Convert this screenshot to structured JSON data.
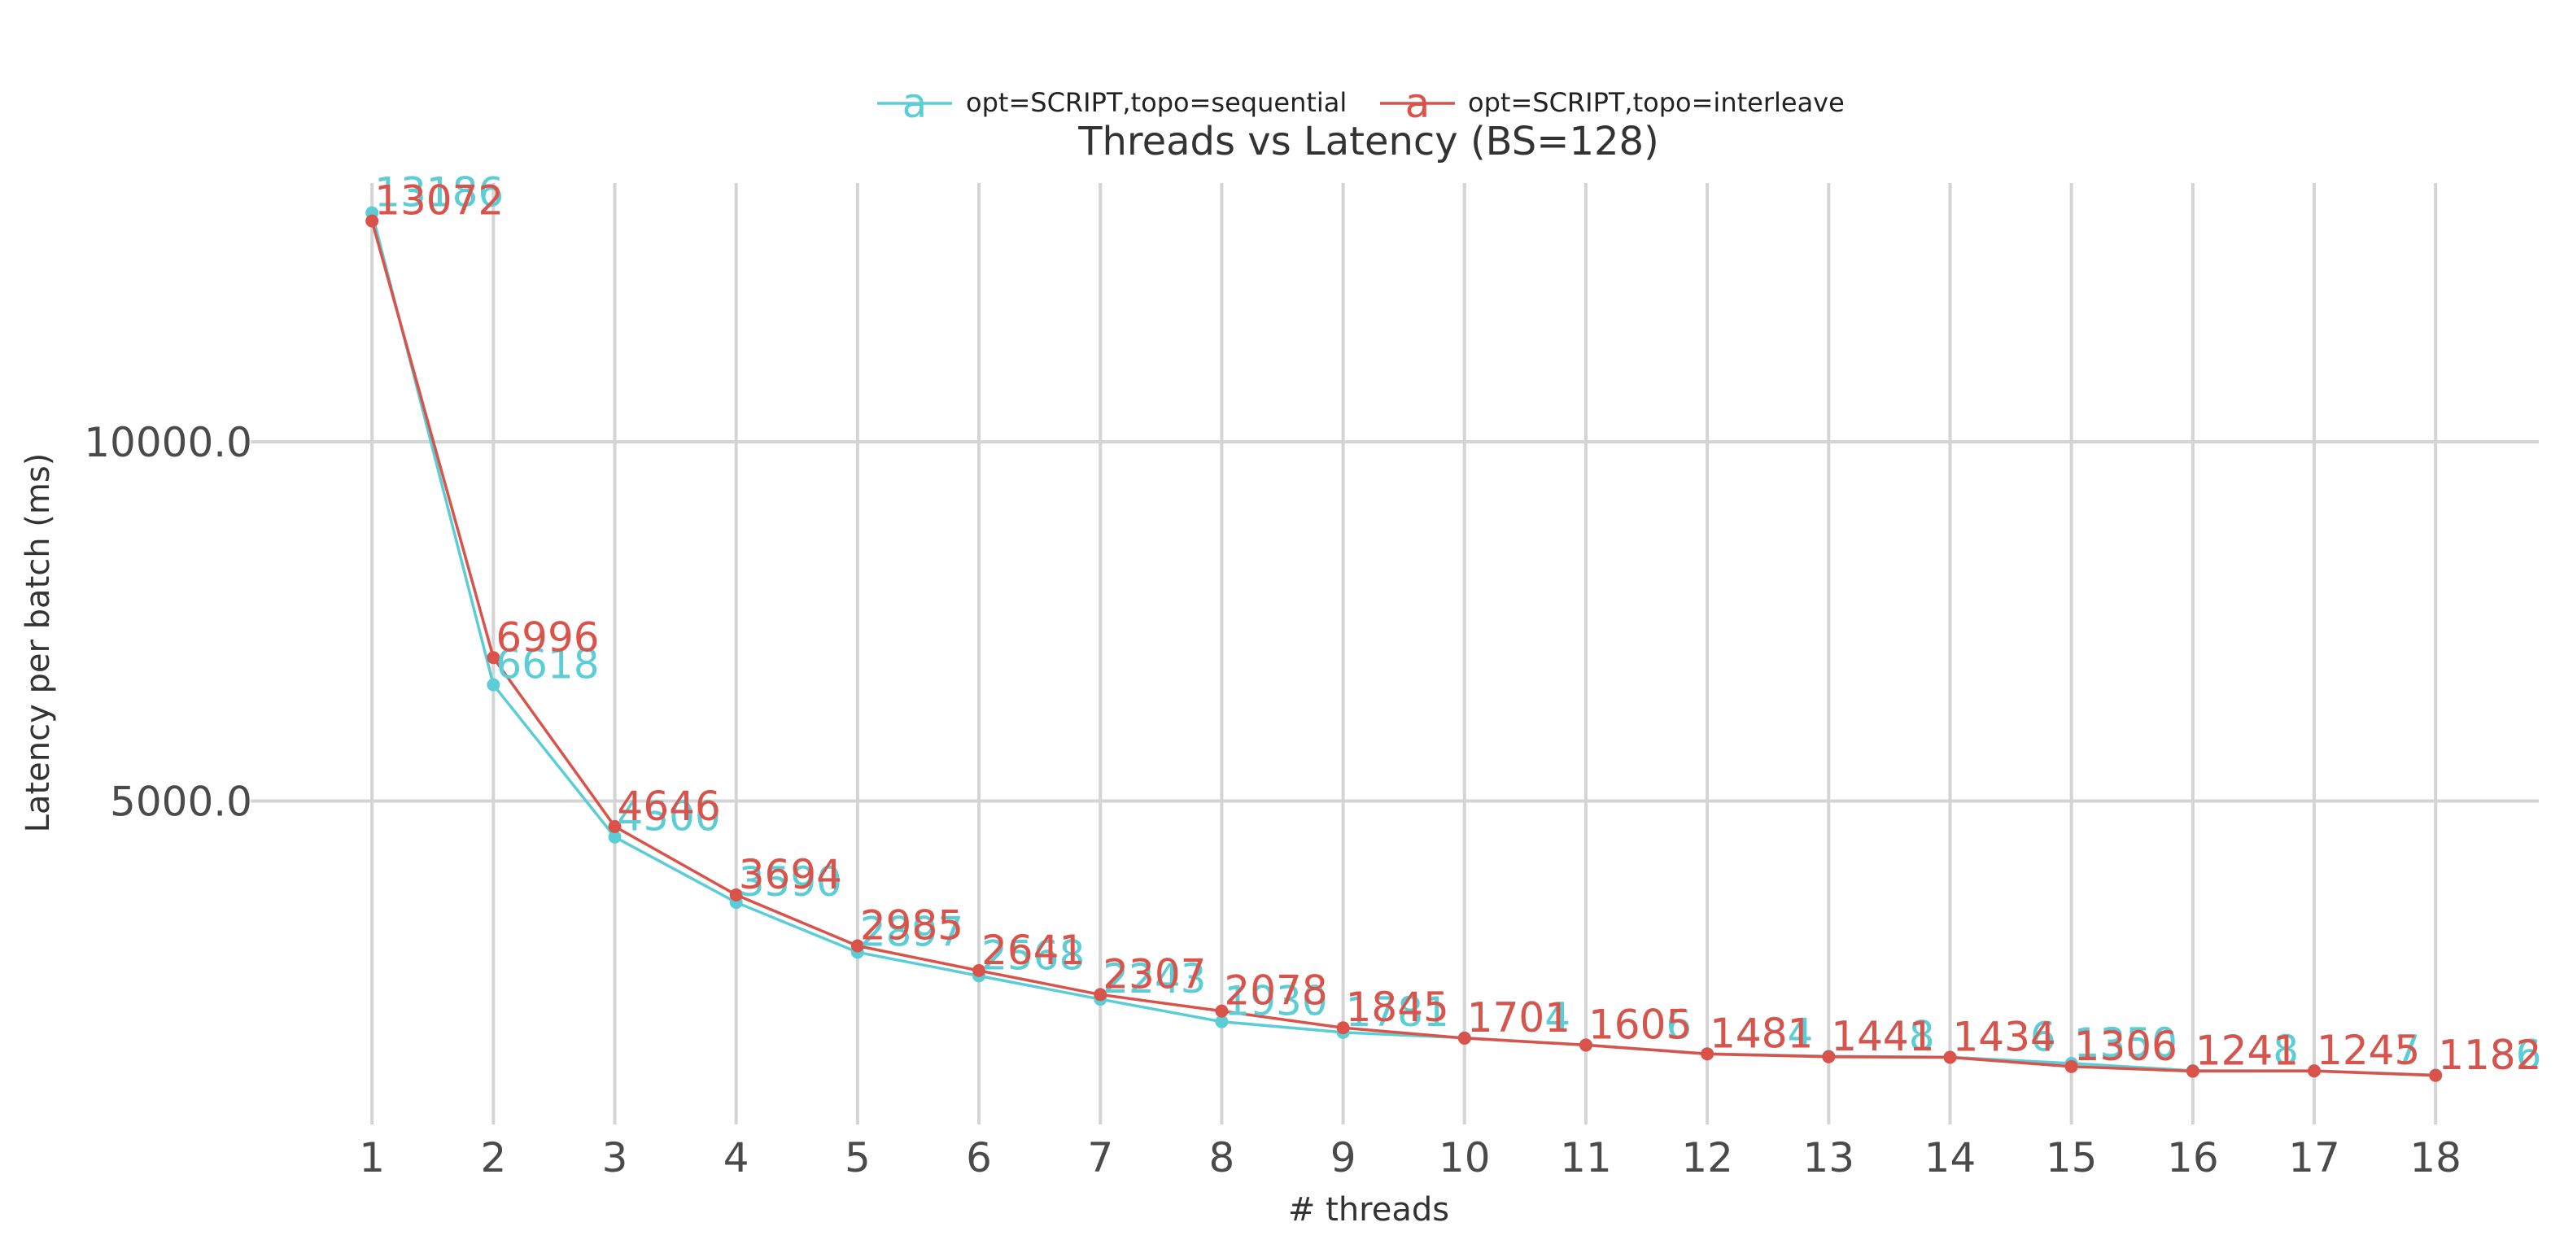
{
  "chart_data": {
    "type": "line",
    "title": "Threads vs Latency (BS=128)",
    "xlabel": "# threads",
    "ylabel": "Latency per batch (ms)",
    "x": [
      1,
      2,
      3,
      4,
      5,
      6,
      7,
      8,
      9,
      10,
      11,
      12,
      13,
      14,
      15,
      16,
      17,
      18
    ],
    "xlim": [
      0,
      18.85
    ],
    "ylim": [
      500,
      13600
    ],
    "yticks": [
      5000,
      10000
    ],
    "ytick_labels": [
      "5000.0",
      "10000.0"
    ],
    "grid": true,
    "legend_position": "top-center",
    "series": [
      {
        "name": "opt=SCRIPT,topo=sequential",
        "color": "#5bcdd6",
        "values": [
          13186,
          6618,
          4500,
          3590,
          2897,
          2568,
          2243,
          1930,
          1781,
          1704,
          1606,
          1484,
          1448,
          1436,
          1350,
          1248,
          1247,
          1186
        ]
      },
      {
        "name": "opt=SCRIPT,topo=interleave",
        "color": "#d9534a",
        "values": [
          13072,
          6996,
          4646,
          3694,
          2985,
          2641,
          2307,
          2078,
          1845,
          1701,
          1605,
          1481,
          1441,
          1434,
          1306,
          1241,
          1245,
          1182
        ]
      }
    ],
    "legend_marker_glyph": "a"
  }
}
